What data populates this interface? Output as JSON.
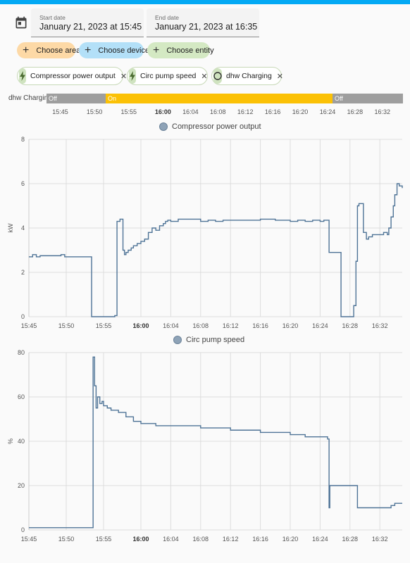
{
  "date_range": {
    "start_label": "Start date",
    "start_value": "January 21, 2023 at 15:45",
    "end_label": "End date",
    "end_value": "January 21, 2023 at 16:35"
  },
  "target_pickers": [
    {
      "label": "Choose area",
      "color": "#fdd9a6"
    },
    {
      "label": "Choose device",
      "color": "#b3e0f8"
    },
    {
      "label": "Choose entity",
      "color": "#d4e9c3"
    }
  ],
  "selected_entities": [
    {
      "label": "Compressor power output",
      "icon": "lightning-icon"
    },
    {
      "label": "Circ pump speed",
      "icon": "lightning-icon"
    },
    {
      "label": "dhw Charging",
      "icon": "circle-outline-icon"
    }
  ],
  "timeline": {
    "entity": "dhw Charging",
    "segments": [
      {
        "state": "Off",
        "start": "15:43",
        "end": "15:53.4",
        "color": "#9e9e9e"
      },
      {
        "state": "On",
        "start": "15:53.4",
        "end": "16:25.2",
        "color": "#fbc106"
      },
      {
        "state": "Off",
        "start": "16:25.2",
        "end": "16:35",
        "color": "#9e9e9e"
      }
    ]
  },
  "x_ticks": [
    {
      "label": "15:45",
      "bold": false
    },
    {
      "label": "15:50",
      "bold": false
    },
    {
      "label": "15:55",
      "bold": false
    },
    {
      "label": "16:00",
      "bold": true
    },
    {
      "label": "16:04",
      "bold": false
    },
    {
      "label": "16:08",
      "bold": false
    },
    {
      "label": "16:12",
      "bold": false
    },
    {
      "label": "16:16",
      "bold": false
    },
    {
      "label": "16:20",
      "bold": false
    },
    {
      "label": "16:24",
      "bold": false
    },
    {
      "label": "16:28",
      "bold": false
    },
    {
      "label": "16:32",
      "bold": false
    }
  ],
  "chart_data": [
    {
      "type": "line",
      "title": "",
      "legend": "Compressor power output",
      "ylabel": "kW",
      "ylim": [
        0,
        8
      ],
      "yticks": [
        0,
        2,
        4,
        6,
        8
      ],
      "xlim": [
        "15:45",
        "16:35"
      ],
      "line_color": "#4e7396",
      "series": [
        {
          "name": "Compressor power output",
          "x": [
            "15:45",
            "15:45.5",
            "15:46",
            "15:46.5",
            "15:47",
            "15:48",
            "15:49",
            "15:49.3",
            "15:49.8",
            "15:50",
            "15:52",
            "15:53.4",
            "15:53.6",
            "15:56.5",
            "15:56.8",
            "15:57.2",
            "15:57.6",
            "15:57.8",
            "15:58",
            "15:58.3",
            "15:58.7",
            "15:59",
            "15:59.5",
            "16:00",
            "16:00.5",
            "16:01",
            "16:01.5",
            "16:02",
            "16:02.5",
            "16:03",
            "16:03.3",
            "16:03.6",
            "16:04",
            "16:05",
            "16:08",
            "16:09",
            "16:10",
            "16:11",
            "16:12",
            "16:14",
            "16:16",
            "16:18",
            "16:20",
            "16:21",
            "16:22",
            "16:23",
            "16:24",
            "16:24.5",
            "16:25.2",
            "16:26.8",
            "16:27",
            "16:28.5",
            "16:28.8",
            "16:29",
            "16:29.2",
            "16:29.8",
            "16:30.2",
            "16:30.5",
            "16:31",
            "16:32",
            "16:32.5",
            "16:33",
            "16:33.2",
            "16:33.5",
            "16:33.8",
            "16:34",
            "16:34.3",
            "16:34.6",
            "16:35"
          ],
          "y": [
            2.7,
            2.8,
            2.7,
            2.75,
            2.75,
            2.75,
            2.75,
            2.8,
            2.7,
            2.7,
            2.7,
            0,
            0,
            0.05,
            4.3,
            4.4,
            3.0,
            2.8,
            2.9,
            3.0,
            3.1,
            3.2,
            3.3,
            3.4,
            3.5,
            3.8,
            4.0,
            3.9,
            4.1,
            4.2,
            4.3,
            4.35,
            4.3,
            4.4,
            4.3,
            4.35,
            4.3,
            4.35,
            4.35,
            4.35,
            4.4,
            4.35,
            4.3,
            4.35,
            4.3,
            4.35,
            4.3,
            4.35,
            2.9,
            0,
            0,
            0.5,
            2.5,
            5.0,
            5.1,
            3.8,
            3.5,
            3.6,
            3.7,
            3.7,
            3.8,
            3.7,
            4.0,
            4.5,
            5.0,
            5.5,
            6.0,
            5.9,
            5.8
          ]
        }
      ]
    },
    {
      "type": "line",
      "title": "",
      "legend": "Circ pump speed",
      "ylabel": "%",
      "ylim": [
        0,
        80
      ],
      "yticks": [
        0,
        20,
        40,
        60,
        80
      ],
      "xlim": [
        "15:45",
        "16:35"
      ],
      "line_color": "#4e7396",
      "series": [
        {
          "name": "Circ pump speed",
          "x": [
            "15:45",
            "15:53.4",
            "15:53.6",
            "15:53.8",
            "15:54",
            "15:54.2",
            "15:54.5",
            "15:54.8",
            "15:55",
            "15:55.5",
            "15:56",
            "15:57",
            "15:58",
            "15:59",
            "16:00",
            "16:01",
            "16:02",
            "16:04",
            "16:06",
            "16:08",
            "16:10",
            "16:12",
            "16:14",
            "16:16",
            "16:18",
            "16:20",
            "16:22",
            "16:24",
            "16:25",
            "16:25.2",
            "16:25.3",
            "16:25.5",
            "16:28.5",
            "16:29",
            "16:32",
            "16:33",
            "16:33.5",
            "16:34",
            "16:35"
          ],
          "y": [
            1,
            1,
            78,
            65,
            55,
            60,
            57,
            58,
            56,
            55,
            54,
            53,
            51,
            49,
            48,
            48,
            47,
            47,
            47,
            46,
            46,
            45,
            45,
            44,
            44,
            43,
            42,
            42,
            41,
            10,
            20,
            20,
            20,
            10,
            10,
            10,
            11,
            12,
            12
          ]
        }
      ]
    }
  ]
}
